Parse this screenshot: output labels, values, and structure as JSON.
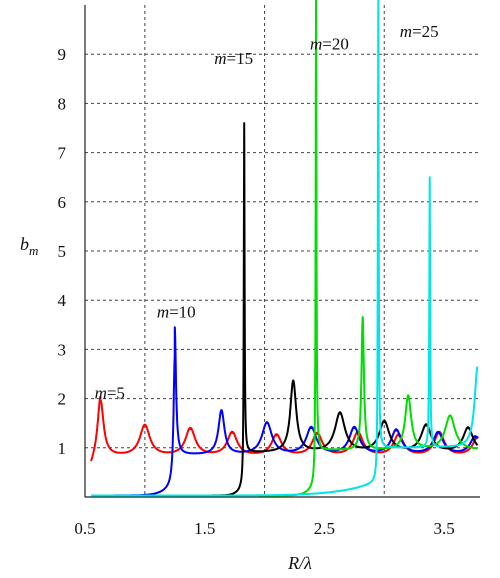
{
  "chart_data": {
    "type": "line",
    "xlabel": "R/λ",
    "ylabel_main": "b",
    "ylabel_sub": "m",
    "xlim": [
      0.5,
      3.8
    ],
    "ylim": [
      0,
      10
    ],
    "x_ticks": [
      0.5,
      1.5,
      2.5,
      3.5
    ],
    "x_tick_labels": [
      "0.5",
      "1.5",
      "2.5",
      "3.5"
    ],
    "x_grid": [
      1.0,
      2.0,
      3.0
    ],
    "y_ticks": [
      1,
      2,
      3,
      4,
      5,
      6,
      7,
      8,
      9
    ],
    "y_tick_labels": [
      "1",
      "2",
      "3",
      "4",
      "5",
      "6",
      "7",
      "8",
      "9"
    ],
    "grid": true,
    "annotations": [
      {
        "m_text": "m",
        "val_text": "=5",
        "x": 0.58,
        "y": 2.0
      },
      {
        "m_text": "m",
        "val_text": "=10",
        "x": 1.1,
        "y": 3.65
      },
      {
        "m_text": "m",
        "val_text": "=15",
        "x": 1.58,
        "y": 8.8
      },
      {
        "m_text": "m",
        "val_text": "=20",
        "x": 2.38,
        "y": 9.1
      },
      {
        "m_text": "m",
        "val_text": "=25",
        "x": 3.13,
        "y": 9.35
      }
    ],
    "series": [
      {
        "m": 5,
        "color": "#ff0000",
        "baseline": 0.82,
        "start_x": 0.55,
        "start_y": 0.58,
        "peaks": [
          [
            0.63,
            1.95
          ],
          [
            1.0,
            1.45
          ],
          [
            1.38,
            1.38
          ],
          [
            1.73,
            1.3
          ],
          [
            2.1,
            1.25
          ],
          [
            2.44,
            1.28
          ],
          [
            2.78,
            1.3
          ],
          [
            3.12,
            1.25
          ],
          [
            3.46,
            1.3
          ],
          [
            3.78,
            1.2
          ]
        ]
      },
      {
        "m": 10,
        "color": "#0000ff",
        "baseline": 0.85,
        "start_x": 0.55,
        "start_y": 0.03,
        "peaks": [
          [
            1.25,
            3.45
          ],
          [
            1.64,
            1.75
          ],
          [
            2.02,
            1.5
          ],
          [
            2.39,
            1.4
          ],
          [
            2.75,
            1.4
          ],
          [
            3.1,
            1.35
          ],
          [
            3.45,
            1.3
          ],
          [
            3.76,
            1.22
          ]
        ]
      },
      {
        "m": 15,
        "color": "#000000",
        "baseline": 0.9,
        "start_x": 1.45,
        "start_y": 0.03,
        "peaks": [
          [
            1.83,
            7.6
          ],
          [
            2.24,
            2.35
          ],
          [
            2.63,
            1.7
          ],
          [
            3.0,
            1.52
          ],
          [
            3.35,
            1.45
          ],
          [
            3.7,
            1.4
          ]
        ]
      },
      {
        "m": 20,
        "color": "#00dd00",
        "baseline": 0.95,
        "start_x": 1.95,
        "start_y": 0.03,
        "peaks": [
          [
            2.43,
            10.2
          ],
          [
            2.82,
            3.65
          ],
          [
            3.2,
            2.05
          ],
          [
            3.55,
            1.65
          ]
        ]
      },
      {
        "m": 25,
        "color": "#00e5e5",
        "baseline": 1.0,
        "start_x": 0.55,
        "start_y": 0.03,
        "peaks": [
          [
            2.95,
            10.2
          ],
          [
            3.38,
            6.5
          ],
          [
            3.78,
            2.65
          ]
        ]
      }
    ]
  }
}
